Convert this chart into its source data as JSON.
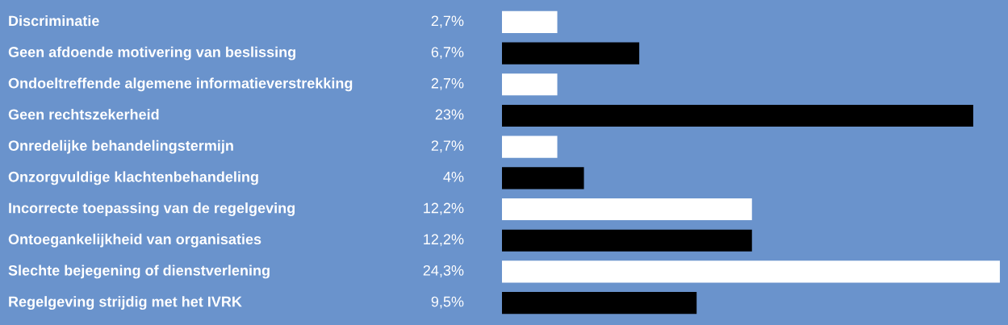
{
  "chart_data": {
    "type": "bar",
    "orientation": "horizontal",
    "categories": [
      "Discriminatie",
      "Geen afdoende motivering van beslissing",
      "Ondoeltreffende algemene informatieverstrekking",
      "Geen rechtszekerheid",
      "Onredelijke behandelingstermijn",
      "Onzorgvuldige klachtenbehandeling",
      "Incorrecte toepassing van de regelgeving",
      "Ontoegankelijkheid van organisaties",
      "Slechte bejegening of dienstverlening",
      "Regelgeving strijdig met het IVRK"
    ],
    "values": [
      2.7,
      6.7,
      2.7,
      23,
      2.7,
      4,
      12.2,
      12.2,
      24.3,
      9.5
    ],
    "value_labels": [
      "2,7%",
      "6,7%",
      "2,7%",
      "23%",
      "2,7%",
      "4%",
      "12,2%",
      "12,2%",
      "24,3%",
      "9,5%"
    ],
    "colors": [
      "#ffffff",
      "#000000",
      "#ffffff",
      "#000000",
      "#ffffff",
      "#000000",
      "#ffffff",
      "#000000",
      "#ffffff",
      "#000000"
    ]
  }
}
